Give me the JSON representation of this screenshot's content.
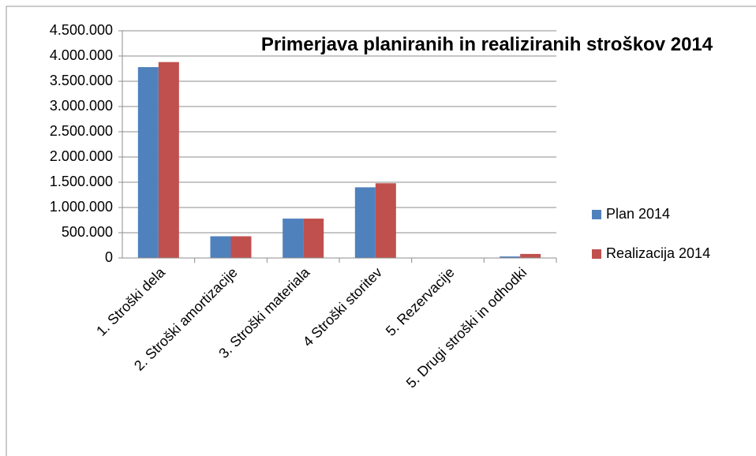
{
  "chart_data": {
    "type": "bar",
    "title": "Primerjava planiranih in realiziranih stroškov 2014",
    "categories": [
      "1. Stroški dela",
      "2. Stroški amortizacije",
      "3. Stroški materiala",
      "4 Stroški storitev",
      "5. Rezervacije",
      "5. Drugi stroški in odhodki"
    ],
    "series": [
      {
        "name": "Plan 2014",
        "color": "#4f81bd",
        "values": [
          3780000,
          430000,
          780000,
          1400000,
          0,
          30000
        ]
      },
      {
        "name": "Realizacija 2014",
        "color": "#c0504d",
        "values": [
          3880000,
          430000,
          780000,
          1480000,
          0,
          80000
        ]
      }
    ],
    "ylim": [
      0,
      4500000
    ],
    "yticks": [
      0,
      {
        "value": 500000,
        "label": "500.000"
      },
      {
        "value": 1000000,
        "label": "1.000.000"
      },
      {
        "value": 1500000,
        "label": "1.500.000"
      },
      {
        "value": 2000000,
        "label": "2.000.000"
      },
      {
        "value": 2500000,
        "label": "2.500.000"
      },
      {
        "value": 3000000,
        "label": "3.000.000"
      },
      {
        "value": 3500000,
        "label": "3.500.000"
      },
      {
        "value": 4000000,
        "label": "4.000.000"
      },
      {
        "value": 4500000,
        "label": "4.500.000"
      }
    ],
    "grid": true,
    "legend": "right"
  }
}
